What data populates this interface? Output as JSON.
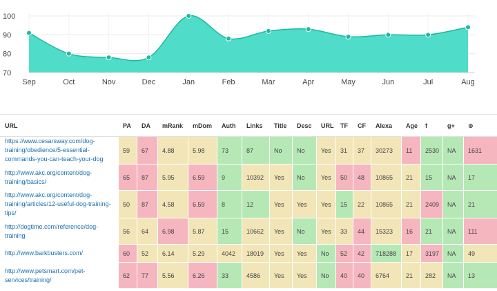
{
  "chart_data": {
    "type": "area",
    "categories": [
      "Sep",
      "Oct",
      "Nov",
      "Dec",
      "Jan",
      "Feb",
      "Mar",
      "Apr",
      "May",
      "Jun",
      "Jul",
      "Aug"
    ],
    "values": [
      91,
      80,
      78,
      78,
      100,
      88,
      92,
      93,
      89,
      90,
      90,
      94
    ],
    "ylim": [
      70,
      100
    ],
    "yticks": [
      70,
      80,
      90,
      100
    ],
    "title": "",
    "xlabel": "",
    "ylabel": "",
    "color": "#4fdcc8",
    "line_color": "#1db9a2",
    "grid": true
  },
  "table": {
    "headers": [
      "URL",
      "PA",
      "DA",
      "mRank",
      "mDom",
      "Auth",
      "Links",
      "Title",
      "Desc",
      "URL",
      "TF",
      "CF",
      "Alexa",
      "Age"
    ],
    "icon_headers": [
      {
        "name": "facebook-icon",
        "glyph": "f"
      },
      {
        "name": "google-plus-icon",
        "glyph": "g+"
      },
      {
        "name": "pinterest-icon",
        "glyph": "⊕"
      }
    ],
    "rows": [
      {
        "url": "https://www.cesarsway.com/dog-training/obedience/5-essential-commands-you-can-teach-your-dog",
        "cells": [
          "59",
          "67",
          "4.88",
          "5.98",
          "73",
          "87",
          "No",
          "No",
          "Yes",
          "31",
          "37",
          "30273",
          "11",
          "2530",
          "NA",
          "1631"
        ],
        "colors": [
          "y",
          "r",
          "y",
          "y",
          "g",
          "g",
          "g",
          "g",
          "y",
          "y",
          "y",
          "y",
          "r",
          "g",
          "g",
          "r"
        ]
      },
      {
        "url": "http://www.akc.org/content/dog-training/basics/",
        "cells": [
          "65",
          "87",
          "5.95",
          "6.59",
          "9",
          "10392",
          "Yes",
          "No",
          "Yes",
          "50",
          "48",
          "10865",
          "21",
          "15",
          "NA",
          "17"
        ],
        "colors": [
          "r",
          "r",
          "y",
          "r",
          "g",
          "y",
          "y",
          "g",
          "y",
          "r",
          "r",
          "y",
          "y",
          "g",
          "g",
          "g"
        ]
      },
      {
        "url": "http://www.akc.org/content/dog-training/articles/12-useful-dog-training-tips/",
        "cells": [
          "50",
          "87",
          "4.58",
          "6.59",
          "8",
          "12",
          "Yes",
          "Yes",
          "Yes",
          "15",
          "22",
          "10865",
          "21",
          "2409",
          "NA",
          "21"
        ],
        "colors": [
          "y",
          "r",
          "y",
          "r",
          "g",
          "g",
          "y",
          "y",
          "y",
          "g",
          "y",
          "y",
          "y",
          "r",
          "g",
          "g"
        ]
      },
      {
        "url": "http://dogtime.com/reference/dog-training",
        "cells": [
          "56",
          "64",
          "6.98",
          "5.87",
          "15",
          "10662",
          "Yes",
          "No",
          "Yes",
          "33",
          "44",
          "15323",
          "16",
          "21",
          "NA",
          "111"
        ],
        "colors": [
          "y",
          "y",
          "r",
          "y",
          "g",
          "y",
          "y",
          "g",
          "y",
          "y",
          "r",
          "y",
          "r",
          "g",
          "g",
          "r"
        ]
      },
      {
        "url": "http://www.barkbusters.com/",
        "cells": [
          "60",
          "52",
          "6.14",
          "5.29",
          "4042",
          "18019",
          "Yes",
          "Yes",
          "No",
          "52",
          "42",
          "718288",
          "17",
          "3197",
          "NA",
          "49"
        ],
        "colors": [
          "r",
          "y",
          "y",
          "y",
          "y",
          "y",
          "y",
          "y",
          "g",
          "r",
          "r",
          "g",
          "y",
          "r",
          "g",
          "y"
        ]
      },
      {
        "url": "http://www.petsmart.com/pet-services/training/",
        "cells": [
          "62",
          "77",
          "5.56",
          "6.26",
          "33",
          "4586",
          "Yes",
          "Yes",
          "No",
          "40",
          "40",
          "6764",
          "21",
          "282",
          "NA",
          "13"
        ],
        "colors": [
          "r",
          "r",
          "y",
          "r",
          "g",
          "y",
          "y",
          "y",
          "g",
          "r",
          "r",
          "y",
          "y",
          "y",
          "g",
          "g"
        ]
      }
    ]
  }
}
